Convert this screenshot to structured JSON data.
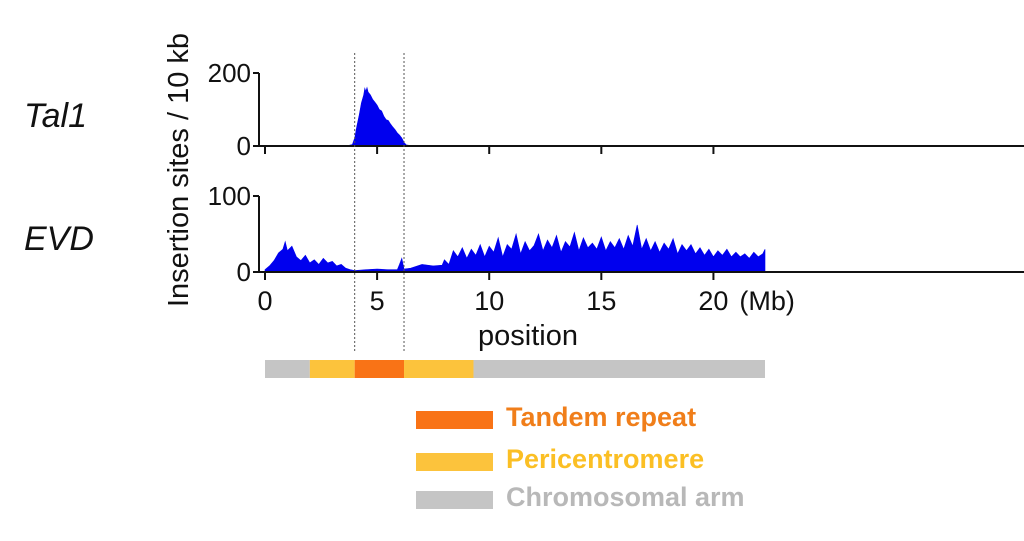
{
  "chart_data": {
    "type": "area",
    "xlabel": "position",
    "ylabel": "Insertion sites / 10 kb",
    "x_unit": "(Mb)",
    "xlim": [
      0,
      22.3
    ],
    "xticks": [
      0,
      5,
      10,
      15,
      20
    ],
    "xtick_labels": [
      "0",
      "5",
      "10",
      "15",
      "20"
    ],
    "series_color": "#0000ee",
    "region_markers_mb": [
      4.0,
      6.2
    ],
    "panels": [
      {
        "name": "Tal1",
        "ylim": [
          0,
          200
        ],
        "yticks": [
          0,
          200
        ],
        "ytick_labels": [
          "0",
          "200"
        ],
        "points": [
          [
            0,
            1
          ],
          [
            3.7,
            1
          ],
          [
            3.9,
            4
          ],
          [
            4.0,
            22
          ],
          [
            4.1,
            55
          ],
          [
            4.2,
            85
          ],
          [
            4.3,
            118
          ],
          [
            4.4,
            140
          ],
          [
            4.45,
            158
          ],
          [
            4.5,
            150
          ],
          [
            4.55,
            160
          ],
          [
            4.6,
            148
          ],
          [
            4.7,
            140
          ],
          [
            4.8,
            128
          ],
          [
            4.9,
            120
          ],
          [
            5.0,
            112
          ],
          [
            5.1,
            100
          ],
          [
            5.2,
            96
          ],
          [
            5.3,
            82
          ],
          [
            5.4,
            72
          ],
          [
            5.5,
            70
          ],
          [
            5.6,
            60
          ],
          [
            5.7,
            52
          ],
          [
            5.8,
            45
          ],
          [
            5.9,
            36
          ],
          [
            6.0,
            30
          ],
          [
            6.1,
            22
          ],
          [
            6.2,
            10
          ],
          [
            6.3,
            3
          ],
          [
            6.5,
            1
          ],
          [
            22.3,
            1
          ]
        ]
      },
      {
        "name": "EVD",
        "ylim": [
          0,
          100
        ],
        "yticks": [
          0,
          100
        ],
        "ytick_labels": [
          "0",
          "100"
        ],
        "points": [
          [
            0,
            3
          ],
          [
            0.2,
            8
          ],
          [
            0.4,
            15
          ],
          [
            0.6,
            25
          ],
          [
            0.8,
            30
          ],
          [
            0.9,
            40
          ],
          [
            1.0,
            28
          ],
          [
            1.2,
            34
          ],
          [
            1.4,
            20
          ],
          [
            1.6,
            15
          ],
          [
            1.8,
            22
          ],
          [
            2.0,
            12
          ],
          [
            2.2,
            16
          ],
          [
            2.4,
            10
          ],
          [
            2.6,
            18
          ],
          [
            2.8,
            12
          ],
          [
            3.0,
            14
          ],
          [
            3.2,
            8
          ],
          [
            3.4,
            10
          ],
          [
            3.6,
            5
          ],
          [
            3.8,
            3
          ],
          [
            4.0,
            2
          ],
          [
            4.5,
            3
          ],
          [
            5.0,
            4
          ],
          [
            5.5,
            3
          ],
          [
            5.9,
            3
          ],
          [
            6.0,
            10
          ],
          [
            6.1,
            18
          ],
          [
            6.2,
            4
          ],
          [
            6.5,
            5
          ],
          [
            7.0,
            10
          ],
          [
            7.5,
            8
          ],
          [
            7.9,
            9
          ],
          [
            8.0,
            16
          ],
          [
            8.2,
            10
          ],
          [
            8.4,
            28
          ],
          [
            8.6,
            20
          ],
          [
            8.8,
            32
          ],
          [
            9.0,
            18
          ],
          [
            9.2,
            30
          ],
          [
            9.4,
            22
          ],
          [
            9.6,
            36
          ],
          [
            9.8,
            20
          ],
          [
            10.0,
            34
          ],
          [
            10.2,
            26
          ],
          [
            10.4,
            45
          ],
          [
            10.6,
            20
          ],
          [
            10.8,
            36
          ],
          [
            11.0,
            30
          ],
          [
            11.2,
            50
          ],
          [
            11.4,
            24
          ],
          [
            11.6,
            40
          ],
          [
            11.8,
            28
          ],
          [
            12.0,
            35
          ],
          [
            12.2,
            50
          ],
          [
            12.4,
            28
          ],
          [
            12.6,
            42
          ],
          [
            12.8,
            32
          ],
          [
            13.0,
            48
          ],
          [
            13.2,
            26
          ],
          [
            13.4,
            40
          ],
          [
            13.6,
            33
          ],
          [
            13.8,
            52
          ],
          [
            14.0,
            28
          ],
          [
            14.2,
            45
          ],
          [
            14.4,
            32
          ],
          [
            14.6,
            38
          ],
          [
            14.8,
            30
          ],
          [
            15.0,
            46
          ],
          [
            15.2,
            28
          ],
          [
            15.4,
            40
          ],
          [
            15.6,
            32
          ],
          [
            15.8,
            44
          ],
          [
            16.0,
            30
          ],
          [
            16.2,
            48
          ],
          [
            16.4,
            34
          ],
          [
            16.6,
            62
          ],
          [
            16.8,
            30
          ],
          [
            17.0,
            44
          ],
          [
            17.2,
            28
          ],
          [
            17.4,
            40
          ],
          [
            17.6,
            26
          ],
          [
            17.8,
            38
          ],
          [
            18.0,
            30
          ],
          [
            18.2,
            44
          ],
          [
            18.4,
            24
          ],
          [
            18.6,
            36
          ],
          [
            18.8,
            28
          ],
          [
            19.0,
            36
          ],
          [
            19.2,
            24
          ],
          [
            19.4,
            32
          ],
          [
            19.6,
            22
          ],
          [
            19.8,
            30
          ],
          [
            20.0,
            20
          ],
          [
            20.2,
            28
          ],
          [
            20.4,
            22
          ],
          [
            20.6,
            30
          ],
          [
            20.8,
            20
          ],
          [
            21.0,
            26
          ],
          [
            21.2,
            20
          ],
          [
            21.4,
            24
          ],
          [
            21.6,
            18
          ],
          [
            21.8,
            26
          ],
          [
            22.0,
            20
          ],
          [
            22.2,
            24
          ],
          [
            22.3,
            30
          ],
          [
            22.3,
            0
          ]
        ]
      }
    ],
    "chromosome_bar": [
      {
        "kind": "arm",
        "start": 0,
        "end": 2.0
      },
      {
        "kind": "peri",
        "start": 2.0,
        "end": 4.0
      },
      {
        "kind": "tandem",
        "start": 4.0,
        "end": 6.2
      },
      {
        "kind": "peri",
        "start": 6.2,
        "end": 9.3
      },
      {
        "kind": "arm",
        "start": 9.3,
        "end": 22.3
      }
    ],
    "legend": [
      {
        "key": "tandem",
        "label": "Tandem repeat",
        "color": "#f97316",
        "text_color": "#f07e1a"
      },
      {
        "key": "peri",
        "label": "Pericentromere",
        "color": "#fcc33c",
        "text_color": "#fbbf24"
      },
      {
        "key": "arm",
        "label": "Chromosomal arm",
        "color": "#c5c5c5",
        "text_color": "#b8b8b8"
      }
    ]
  }
}
